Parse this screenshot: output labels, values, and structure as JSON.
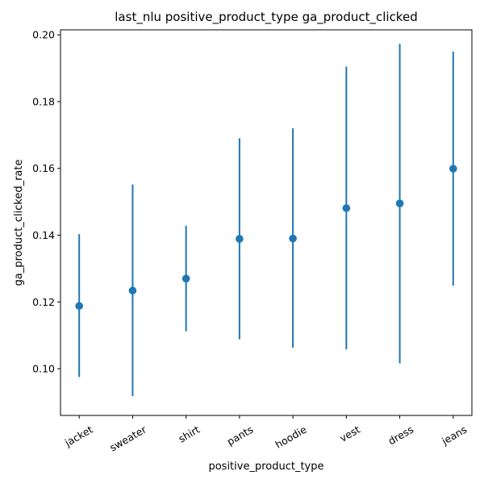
{
  "chart_data": {
    "type": "scatter",
    "title": "last_nlu positive_product_type ga_product_clicked",
    "xlabel": "positive_product_type",
    "ylabel": "ga_product_clicked_rate",
    "categories": [
      "jacket",
      "sweater",
      "shirt",
      "pants",
      "hoodie",
      "vest",
      "dress",
      "jeans"
    ],
    "values": [
      0.1188,
      0.1234,
      0.127,
      0.1389,
      0.139,
      0.1481,
      0.1495,
      0.1599
    ],
    "error_low": [
      0.0975,
      0.0918,
      0.1112,
      0.1088,
      0.1063,
      0.1058,
      0.1016,
      0.1249
    ],
    "error_high": [
      0.1403,
      0.1552,
      0.1428,
      0.169,
      0.172,
      0.1905,
      0.1973,
      0.195
    ],
    "ylim": [
      0.086,
      0.2015
    ],
    "yticks": [
      "0.10",
      "0.12",
      "0.14",
      "0.16",
      "0.18",
      "0.20"
    ],
    "ytick_values": [
      0.1,
      0.12,
      0.14,
      0.16,
      0.18,
      0.2
    ],
    "color": "#1f77b4",
    "grid": false
  }
}
